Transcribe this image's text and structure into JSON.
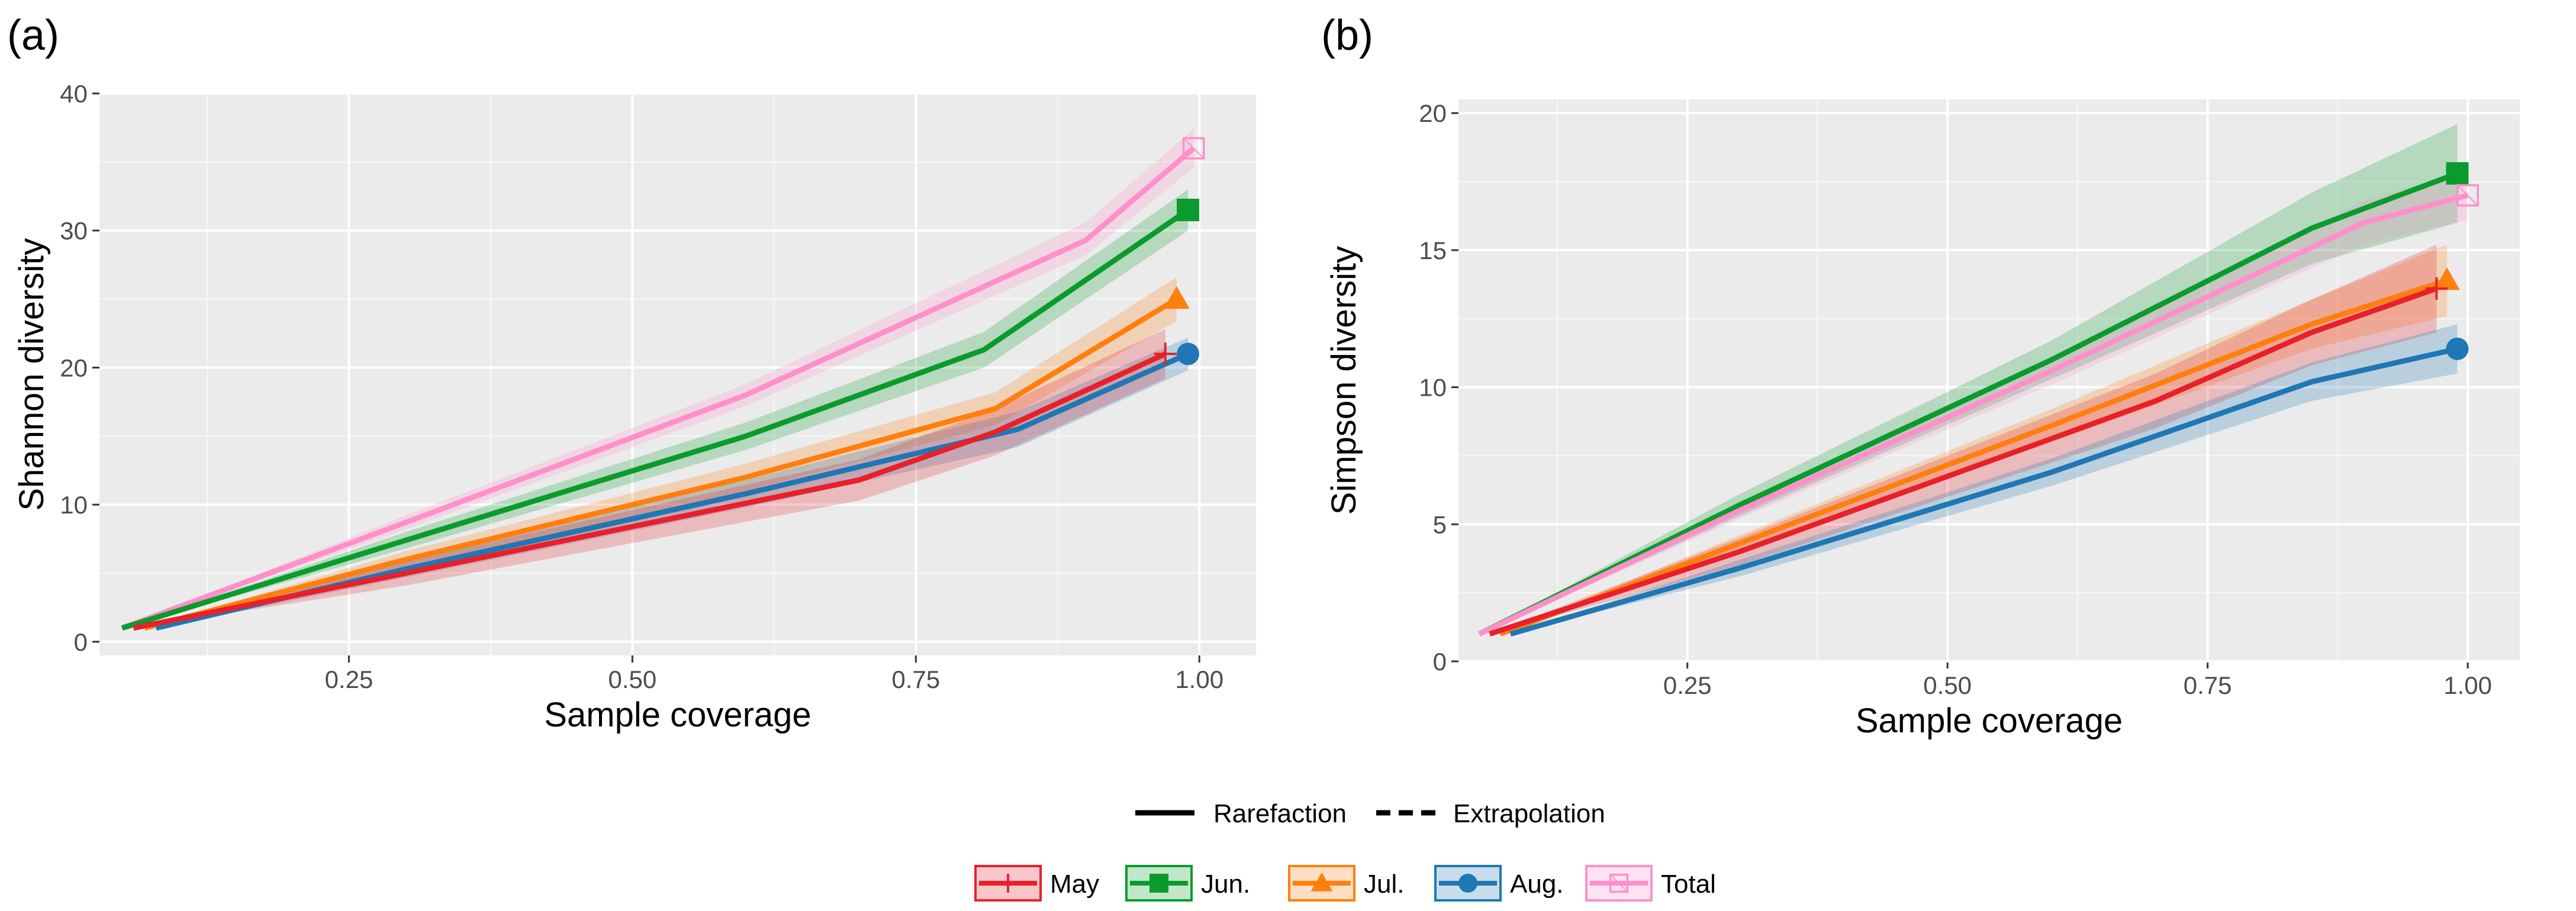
{
  "figure": {
    "legend_linetype": [
      {
        "label": "Rarefaction",
        "dash": "solid"
      },
      {
        "label": "Extrapolation",
        "dash": "dashed"
      }
    ],
    "legend_groups": [
      {
        "label": "May",
        "color": "#e8202a",
        "marker": "plus"
      },
      {
        "label": "Jun.",
        "color": "#0a9b2c",
        "marker": "square"
      },
      {
        "label": "Jul.",
        "color": "#ff7f0e",
        "marker": "triangle"
      },
      {
        "label": "Aug.",
        "color": "#1f77b4",
        "marker": "circle"
      },
      {
        "label": "Total",
        "color": "#ff8fca",
        "marker": "square-open"
      }
    ]
  },
  "chart_data": [
    {
      "type": "line",
      "panel_label": "(a)",
      "title": "",
      "xlabel": "Sample coverage",
      "ylabel": "Shannon diversity",
      "xlim": [
        0.03,
        1.05
      ],
      "ylim": [
        -1,
        40
      ],
      "xticks": [
        0.25,
        0.5,
        0.75,
        1.0
      ],
      "xtick_labels": [
        "0.25",
        "0.50",
        "0.75",
        "1.00"
      ],
      "yticks": [
        0,
        10,
        20,
        30,
        40
      ],
      "ytick_labels": [
        "0",
        "10",
        "20",
        "30",
        "40"
      ],
      "grid": true,
      "series": [
        {
          "name": "Total",
          "color": "#ff8fca",
          "marker": "square-open",
          "x": [
            0.05,
            0.3,
            0.6,
            0.9,
            0.995
          ],
          "y": [
            1,
            8.7,
            18,
            29.3,
            36
          ],
          "lower": [
            1,
            8.2,
            17.2,
            28.2,
            34.6
          ],
          "upper": [
            1,
            9.2,
            18.8,
            30.6,
            37.4
          ]
        },
        {
          "name": "Jun.",
          "color": "#0a9b2c",
          "marker": "square",
          "x": [
            0.05,
            0.3,
            0.6,
            0.81,
            0.99
          ],
          "y": [
            1,
            7.4,
            15,
            21.3,
            31.5
          ],
          "lower": [
            1,
            6.8,
            14,
            20,
            30
          ],
          "upper": [
            1,
            8,
            16,
            22.6,
            33
          ]
        },
        {
          "name": "Jul.",
          "color": "#ff7f0e",
          "marker": "triangle",
          "x": [
            0.07,
            0.3,
            0.6,
            0.82,
            0.98
          ],
          "y": [
            1,
            6,
            12,
            17,
            25
          ],
          "lower": [
            1,
            5.4,
            11,
            15.8,
            23.4
          ],
          "upper": [
            1,
            6.6,
            13,
            18.2,
            26.6
          ]
        },
        {
          "name": "Aug.",
          "color": "#1f77b4",
          "marker": "circle",
          "x": [
            0.08,
            0.3,
            0.6,
            0.84,
            0.99
          ],
          "y": [
            1,
            5.3,
            10.8,
            15.5,
            21
          ],
          "lower": [
            1,
            4.7,
            9.8,
            14.2,
            19.8
          ],
          "upper": [
            1,
            5.9,
            11.8,
            16.8,
            22.2
          ]
        },
        {
          "name": "May",
          "color": "#e8202a",
          "marker": "plus",
          "x": [
            0.06,
            0.3,
            0.7,
            0.82,
            0.97
          ],
          "y": [
            1,
            5,
            11.8,
            15.3,
            21
          ],
          "lower": [
            1,
            4.1,
            10.3,
            13.6,
            19.2
          ],
          "upper": [
            1,
            5.9,
            13.3,
            17,
            22.8
          ]
        }
      ]
    },
    {
      "type": "line",
      "panel_label": "(b)",
      "title": "",
      "xlabel": "Sample coverage",
      "ylabel": "Simpson diversity",
      "xlim": [
        0.03,
        1.05
      ],
      "ylim": [
        0,
        20.5
      ],
      "xticks": [
        0.25,
        0.5,
        0.75,
        1.0
      ],
      "xtick_labels": [
        "0.25",
        "0.50",
        "0.75",
        "1.00"
      ],
      "yticks": [
        0,
        5,
        10,
        15,
        20
      ],
      "ytick_labels": [
        "0",
        "5",
        "10",
        "15",
        "20"
      ],
      "grid": true,
      "series": [
        {
          "name": "Jun.",
          "color": "#0a9b2c",
          "marker": "square",
          "x": [
            0.05,
            0.3,
            0.6,
            0.85,
            0.99
          ],
          "y": [
            1,
            5.7,
            11,
            15.8,
            17.8
          ],
          "lower": [
            1,
            5.3,
            10.3,
            14.5,
            16
          ],
          "upper": [
            1,
            6.1,
            11.7,
            17.1,
            19.6
          ]
        },
        {
          "name": "Total",
          "color": "#ff8fca",
          "marker": "square-open",
          "x": [
            0.05,
            0.3,
            0.6,
            0.9,
            1.0
          ],
          "y": [
            1,
            5.5,
            10.6,
            16,
            17
          ],
          "lower": [
            1,
            5.2,
            10.1,
            15.2,
            16.1
          ],
          "upper": [
            1,
            5.8,
            11.1,
            16.8,
            17.9
          ]
        },
        {
          "name": "Jul.",
          "color": "#ff7f0e",
          "marker": "triangle",
          "x": [
            0.07,
            0.3,
            0.6,
            0.85,
            0.98
          ],
          "y": [
            1,
            4.3,
            8.6,
            12.3,
            13.9
          ],
          "lower": [
            1,
            4,
            8,
            11.4,
            12.6
          ],
          "upper": [
            1,
            4.6,
            9.2,
            13.2,
            15.2
          ]
        },
        {
          "name": "May",
          "color": "#e8202a",
          "marker": "plus",
          "x": [
            0.06,
            0.3,
            0.7,
            0.85,
            0.97
          ],
          "y": [
            1,
            4,
            9.5,
            12,
            13.6
          ],
          "lower": [
            1,
            3.5,
            8.5,
            10.8,
            12
          ],
          "upper": [
            1,
            4.5,
            10.5,
            13.2,
            15.2
          ]
        },
        {
          "name": "Aug.",
          "color": "#1f77b4",
          "marker": "circle",
          "x": [
            0.08,
            0.3,
            0.6,
            0.85,
            0.99
          ],
          "y": [
            1,
            3.4,
            6.9,
            10.2,
            11.4
          ],
          "lower": [
            1,
            3.1,
            6.4,
            9.5,
            10.5
          ],
          "upper": [
            1,
            3.7,
            7.4,
            10.9,
            12.3
          ]
        }
      ]
    }
  ]
}
